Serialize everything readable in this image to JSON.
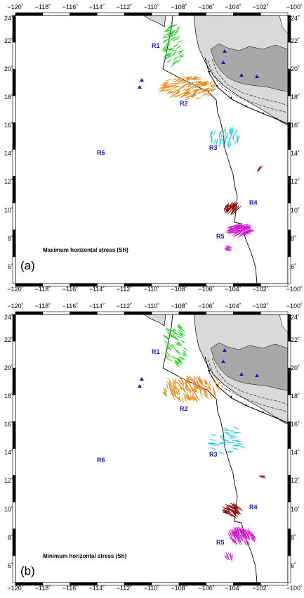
{
  "figure": {
    "panels": [
      {
        "letter": "(a)",
        "stress_title": "Maximum horizontal stress (SH)",
        "regions": [
          "R1",
          "R2",
          "R3",
          "R4",
          "R5",
          "R6"
        ],
        "lon_ticks": [
          "−120˚",
          "−118˚",
          "−116˚",
          "−114˚",
          "−112˚",
          "−110˚",
          "−108˚",
          "−106˚",
          "−104˚",
          "−102˚",
          "−100˚"
        ],
        "lat_ticks": [
          "24˚",
          "22˚",
          "20˚",
          "18˚",
          "16˚",
          "14˚",
          "12˚",
          "10˚",
          "8˚",
          "6˚"
        ]
      },
      {
        "letter": "(b)",
        "stress_title": "Minimum horizontal stress (Sh)",
        "regions": [
          "R1",
          "R2",
          "R3",
          "R4",
          "R5",
          "R6"
        ],
        "lon_ticks": [
          "−120˚",
          "−118˚",
          "−116˚",
          "−114˚",
          "−112˚",
          "−110˚",
          "−108˚",
          "−106˚",
          "−104˚",
          "−102˚",
          "−100˚"
        ],
        "lat_ticks": [
          "24˚",
          "22˚",
          "20˚",
          "18˚",
          "16˚",
          "14˚",
          "12˚",
          "10˚",
          "8˚",
          "6˚"
        ]
      }
    ],
    "region_colors": {
      "R1": "#22cc22",
      "R2": "#e08a1e",
      "R3": "#22c8d8",
      "R4": "#8b0f0f",
      "R5": "#d21ed2"
    },
    "land_color": "#d9d9d9",
    "highland_color": "#a8a8a8",
    "volcano_color": "#1a1aa8"
  }
}
